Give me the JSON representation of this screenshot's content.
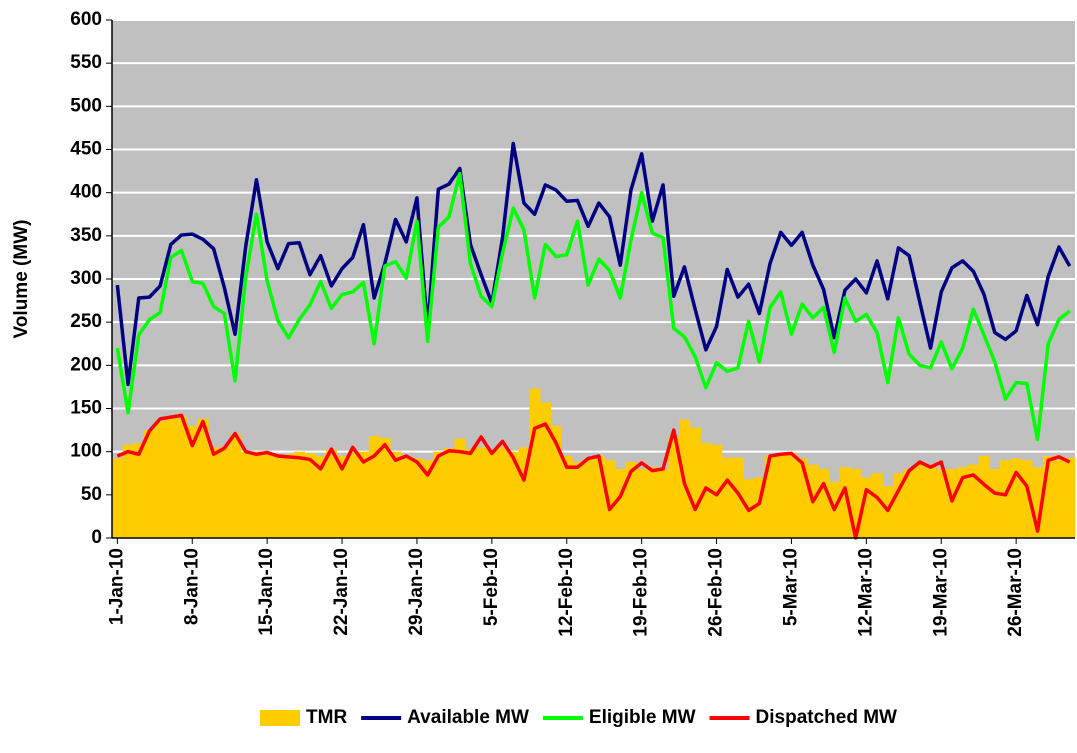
{
  "chart_data": {
    "type": "line",
    "y_label": "Volume (MW)",
    "categories": [
      "1-Jan-10",
      null,
      null,
      null,
      null,
      null,
      null,
      "8-Jan-10",
      null,
      null,
      null,
      null,
      null,
      null,
      "15-Jan-10",
      null,
      null,
      null,
      null,
      null,
      null,
      "22-Jan-10",
      null,
      null,
      null,
      null,
      null,
      null,
      "29-Jan-10",
      null,
      null,
      null,
      null,
      null,
      null,
      "5-Feb-10",
      null,
      null,
      null,
      null,
      null,
      null,
      "12-Feb-10",
      null,
      null,
      null,
      null,
      null,
      null,
      "19-Feb-10",
      null,
      null,
      null,
      null,
      null,
      null,
      "26-Feb-10",
      null,
      null,
      null,
      null,
      null,
      null,
      "5-Mar-10",
      null,
      null,
      null,
      null,
      null,
      null,
      "12-Mar-10",
      null,
      null,
      null,
      null,
      null,
      null,
      "19-Mar-10",
      null,
      null,
      null,
      null,
      null,
      null,
      "26-Mar-10",
      null,
      null,
      null,
      null,
      null
    ],
    "series": [
      {
        "name": "TMR",
        "type": "bar",
        "color": "#ffcc00",
        "values": [
          92,
          108,
          110,
          125,
          135,
          138,
          140,
          130,
          138,
          105,
          105,
          120,
          100,
          100,
          97,
          96,
          97,
          100,
          98,
          95,
          102,
          95,
          100,
          100,
          118,
          116,
          100,
          95,
          92,
          90,
          100,
          104,
          115,
          103,
          105,
          102,
          105,
          100,
          105,
          173,
          157,
          130,
          95,
          88,
          92,
          95,
          90,
          80,
          88,
          80,
          82,
          80,
          118,
          137,
          128,
          110,
          108,
          93,
          93,
          68,
          70,
          95,
          97,
          98,
          92,
          85,
          80,
          65,
          82,
          80,
          70,
          75,
          60,
          75,
          80,
          85,
          82,
          80,
          80,
          82,
          85,
          95,
          80,
          90,
          92,
          90,
          82,
          95,
          90,
          93
        ]
      },
      {
        "name": "Available MW",
        "type": "line",
        "color": "#000080",
        "values": [
          293,
          178,
          278,
          279,
          292,
          340,
          351,
          352,
          346,
          335,
          290,
          236,
          338,
          415,
          343,
          312,
          341,
          342,
          305,
          327,
          292,
          312,
          325,
          363,
          278,
          318,
          369,
          343,
          394,
          242,
          404,
          410,
          428,
          340,
          305,
          272,
          348,
          457,
          388,
          375,
          409,
          403,
          390,
          391,
          361,
          388,
          372,
          316,
          403,
          445,
          367,
          409,
          280,
          314,
          265,
          218,
          245,
          311,
          279,
          294,
          260,
          318,
          354,
          339,
          354,
          316,
          288,
          232,
          287,
          300,
          284,
          321,
          277,
          336,
          327,
          273,
          220,
          285,
          313,
          321,
          309,
          282,
          238,
          230,
          240,
          281,
          247,
          303,
          337,
          315
        ]
      },
      {
        "name": "Eligible MW",
        "type": "line",
        "color": "#00ff00",
        "values": [
          220,
          145,
          235,
          253,
          261,
          325,
          333,
          297,
          295,
          268,
          260,
          182,
          302,
          375,
          298,
          252,
          232,
          253,
          270,
          297,
          266,
          282,
          285,
          296,
          225,
          315,
          320,
          301,
          367,
          228,
          360,
          372,
          422,
          318,
          280,
          268,
          330,
          382,
          357,
          278,
          340,
          326,
          328,
          367,
          293,
          323,
          310,
          278,
          345,
          400,
          353,
          348,
          243,
          233,
          210,
          174,
          203,
          193,
          197,
          251,
          204,
          267,
          285,
          236,
          271,
          255,
          267,
          215,
          278,
          251,
          259,
          238,
          180,
          255,
          213,
          200,
          197,
          227,
          196,
          220,
          265,
          235,
          204,
          161,
          180,
          179,
          114,
          225,
          253,
          263
        ]
      },
      {
        "name": "Dispatched MW",
        "type": "line",
        "color": "#ff0000",
        "values": [
          95,
          100,
          97,
          124,
          138,
          140,
          142,
          107,
          135,
          97,
          104,
          121,
          100,
          97,
          99,
          95,
          94,
          93,
          91,
          80,
          103,
          80,
          105,
          88,
          95,
          108,
          90,
          95,
          88,
          73,
          95,
          101,
          100,
          98,
          117,
          98,
          112,
          93,
          67,
          127,
          132,
          110,
          82,
          82,
          92,
          95,
          33,
          48,
          77,
          87,
          78,
          80,
          125,
          63,
          33,
          58,
          50,
          67,
          52,
          32,
          40,
          95,
          97,
          98,
          87,
          42,
          63,
          33,
          58,
          0,
          56,
          47,
          32,
          55,
          78,
          88,
          82,
          88,
          43,
          70,
          73,
          62,
          52,
          50,
          76,
          60,
          8,
          90,
          94,
          88
        ]
      }
    ],
    "ylim": [
      0,
      600
    ],
    "yticks": [
      0,
      50,
      100,
      150,
      200,
      250,
      300,
      350,
      400,
      450,
      500,
      550,
      600
    ],
    "grid": true,
    "background": "#c0c0c0",
    "legend": "bottom"
  }
}
